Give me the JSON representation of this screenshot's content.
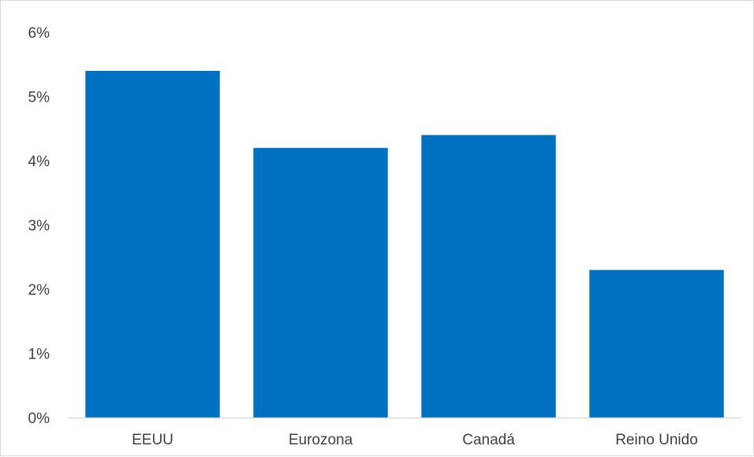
{
  "chart_data": {
    "type": "bar",
    "title": "",
    "xlabel": "",
    "ylabel": "",
    "categories": [
      "EEUU",
      "Eurozona",
      "Canadá",
      "Reino Unido"
    ],
    "values": [
      5.4,
      4.2,
      4.4,
      2.3
    ],
    "ylim": [
      0,
      6
    ],
    "yticks": [
      "0%",
      "1%",
      "2%",
      "3%",
      "4%",
      "5%",
      "6%"
    ],
    "grid": false,
    "legend": "none",
    "bar_color": "#0070C0",
    "axis_color": "#d9d9d9",
    "text_color": "#404040"
  }
}
